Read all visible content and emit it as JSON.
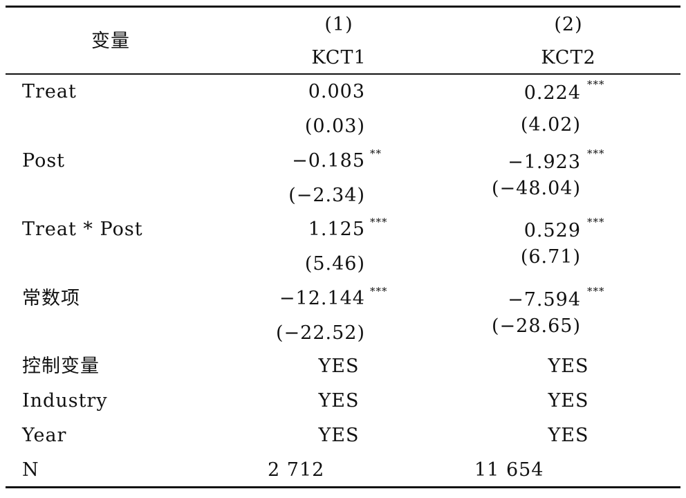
{
  "header": {
    "variable": "变量",
    "col1_num": "(1)",
    "col2_num": "(2)",
    "col1_name": "KCT1",
    "col2_name": "KCT2"
  },
  "rows": [
    {
      "label": "Treat",
      "c1": "0.003",
      "c1_stars": "",
      "c1_t": "(0.03)",
      "c2": "0.224",
      "c2_stars": "***",
      "c2_t": "(4.02)"
    },
    {
      "label": "Post",
      "c1": "−0.185",
      "c1_stars": "**",
      "c1_t": "(−2.34)",
      "c2": "−1.923",
      "c2_stars": "***",
      "c2_t": "(−48.04)"
    },
    {
      "label": "Treat  * Post",
      "c1": "1.125",
      "c1_stars": "***",
      "c1_t": "(5.46)",
      "c2": "0.529",
      "c2_stars": "***",
      "c2_t": "(6.71)"
    },
    {
      "label": "常数项",
      "c1": "−12.144",
      "c1_stars": "***",
      "c1_t": "(−22.52)",
      "c2": "−7.594",
      "c2_stars": "***",
      "c2_t": "(−28.65)"
    }
  ],
  "controls": [
    {
      "label": "控制变量",
      "c1": "YES",
      "c2": "YES"
    },
    {
      "label": "Industry",
      "c1": "YES",
      "c2": "YES"
    },
    {
      "label": "Year",
      "c1": "YES",
      "c2": "YES"
    }
  ],
  "n": {
    "label": "N",
    "c1": "2 712",
    "c2": "11 654"
  }
}
